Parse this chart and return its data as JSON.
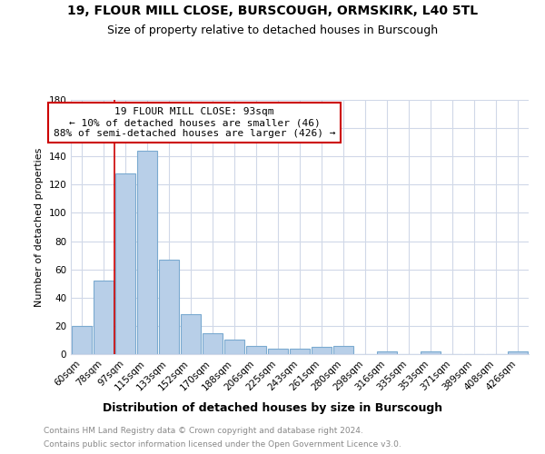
{
  "title": "19, FLOUR MILL CLOSE, BURSCOUGH, ORMSKIRK, L40 5TL",
  "subtitle": "Size of property relative to detached houses in Burscough",
  "xlabel": "Distribution of detached houses by size in Burscough",
  "ylabel": "Number of detached properties",
  "categories": [
    "60sqm",
    "78sqm",
    "97sqm",
    "115sqm",
    "133sqm",
    "152sqm",
    "170sqm",
    "188sqm",
    "206sqm",
    "225sqm",
    "243sqm",
    "261sqm",
    "280sqm",
    "298sqm",
    "316sqm",
    "335sqm",
    "353sqm",
    "371sqm",
    "389sqm",
    "408sqm",
    "426sqm"
  ],
  "values": [
    20,
    52,
    128,
    144,
    67,
    28,
    15,
    10,
    6,
    4,
    4,
    5,
    6,
    0,
    2,
    0,
    2,
    0,
    0,
    0,
    2
  ],
  "bar_color": "#b8cfe8",
  "bar_edgecolor": "#7aaad0",
  "marker_line_color": "#cc0000",
  "annotation_text": "19 FLOUR MILL CLOSE: 93sqm\n← 10% of detached houses are smaller (46)\n88% of semi-detached houses are larger (426) →",
  "annotation_box_facecolor": "white",
  "annotation_box_edgecolor": "#cc0000",
  "ylim": [
    0,
    180
  ],
  "yticks": [
    0,
    20,
    40,
    60,
    80,
    100,
    120,
    140,
    160,
    180
  ],
  "footer_line1": "Contains HM Land Registry data © Crown copyright and database right 2024.",
  "footer_line2": "Contains public sector information licensed under the Open Government Licence v3.0.",
  "bg_color": "#ffffff",
  "grid_color": "#d0d8e8",
  "title_fontsize": 10,
  "subtitle_fontsize": 9,
  "ylabel_fontsize": 8,
  "xlabel_fontsize": 9,
  "tick_fontsize": 7.5,
  "footer_fontsize": 6.5,
  "annotation_fontsize": 8
}
